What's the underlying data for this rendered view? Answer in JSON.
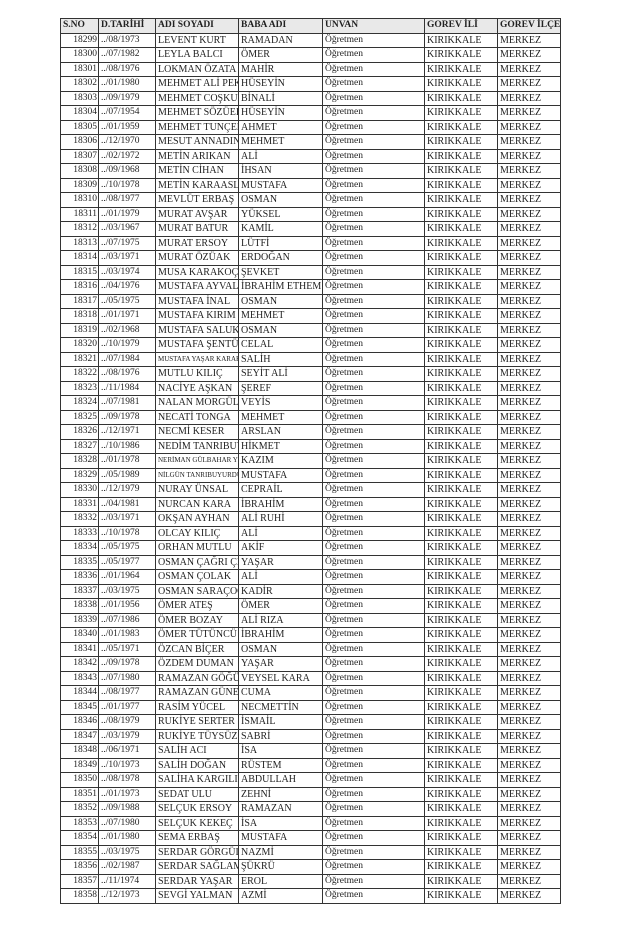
{
  "headers": [
    "S.NO",
    "D.TARİHİ",
    "ADI SOYADI",
    "BABA ADI",
    "UNVAN",
    "GOREV İLİ",
    "GOREV İLÇE"
  ],
  "rows": [
    [
      "18299",
      "../08/1973",
      "LEVENT KURT",
      "RAMADAN",
      "Öğretmen",
      "KIRIKKALE",
      "MERKEZ"
    ],
    [
      "18300",
      "../07/1982",
      "LEYLA BALCI",
      "ÖMER",
      "Öğretmen",
      "KIRIKKALE",
      "MERKEZ"
    ],
    [
      "18301",
      "../08/1976",
      "LOKMAN ÖZATA",
      "MAHİR",
      "Öğretmen",
      "KIRIKKALE",
      "MERKEZ"
    ],
    [
      "18302",
      "../01/1980",
      "MEHMET ALİ PEKER",
      "HÜSEYİN",
      "Öğretmen",
      "KIRIKKALE",
      "MERKEZ"
    ],
    [
      "18303",
      "../09/1979",
      "MEHMET COŞKUN",
      "BİNALİ",
      "Öğretmen",
      "KIRIKKALE",
      "MERKEZ"
    ],
    [
      "18304",
      "../07/1954",
      "MEHMET SÖZÜER",
      "HÜSEYİN",
      "Öğretmen",
      "KIRIKKALE",
      "MERKEZ"
    ],
    [
      "18305",
      "../01/1959",
      "MEHMET TUNÇER",
      "AHMET",
      "Öğretmen",
      "KIRIKKALE",
      "MERKEZ"
    ],
    [
      "18306",
      "../12/1970",
      "MESUT ANNADINÇ",
      "MEHMET",
      "Öğretmen",
      "KIRIKKALE",
      "MERKEZ"
    ],
    [
      "18307",
      "../02/1972",
      "METİN ARIKAN",
      "ALİ",
      "Öğretmen",
      "KIRIKKALE",
      "MERKEZ"
    ],
    [
      "18308",
      "../09/1968",
      "METİN CİHAN",
      "İHSAN",
      "Öğretmen",
      "KIRIKKALE",
      "MERKEZ"
    ],
    [
      "18309",
      "../10/1978",
      "METİN KARAASLAN",
      "MUSTAFA",
      "Öğretmen",
      "KIRIKKALE",
      "MERKEZ"
    ],
    [
      "18310",
      "../08/1977",
      "MEVLÜT ERBAŞ",
      "OSMAN",
      "Öğretmen",
      "KIRIKKALE",
      "MERKEZ"
    ],
    [
      "18311",
      "../01/1979",
      "MURAT AVŞAR",
      "YÜKSEL",
      "Öğretmen",
      "KIRIKKALE",
      "MERKEZ"
    ],
    [
      "18312",
      "../03/1967",
      "MURAT BATUR",
      "KAMİL",
      "Öğretmen",
      "KIRIKKALE",
      "MERKEZ"
    ],
    [
      "18313",
      "../07/1975",
      "MURAT ERSOY",
      "LÜTFİ",
      "Öğretmen",
      "KIRIKKALE",
      "MERKEZ"
    ],
    [
      "18314",
      "../03/1971",
      "MURAT ÖZÜAK",
      "ERDOĞAN",
      "Öğretmen",
      "KIRIKKALE",
      "MERKEZ"
    ],
    [
      "18315",
      "../03/1974",
      "MUSA KARAKOÇ",
      "ŞEVKET",
      "Öğretmen",
      "KIRIKKALE",
      "MERKEZ"
    ],
    [
      "18316",
      "../04/1976",
      "MUSTAFA AYVALIK",
      "İBRAHİM ETHEM",
      "Öğretmen",
      "KIRIKKALE",
      "MERKEZ"
    ],
    [
      "18317",
      "../05/1975",
      "MUSTAFA İNAL",
      "OSMAN",
      "Öğretmen",
      "KIRIKKALE",
      "MERKEZ"
    ],
    [
      "18318",
      "../01/1971",
      "MUSTAFA KIRIM",
      "MEHMET",
      "Öğretmen",
      "KIRIKKALE",
      "MERKEZ"
    ],
    [
      "18319",
      "../02/1968",
      "MUSTAFA SALUK",
      "OSMAN",
      "Öğretmen",
      "KIRIKKALE",
      "MERKEZ"
    ],
    [
      "18320",
      "../10/1979",
      "MUSTAFA ŞENTÜRK",
      "CELAL",
      "Öğretmen",
      "KIRIKKALE",
      "MERKEZ"
    ],
    [
      "18321",
      "../07/1984",
      "MUSTAFA YAŞAR KARAKÇI",
      "SALİH",
      "Öğretmen",
      "KIRIKKALE",
      "MERKEZ"
    ],
    [
      "18322",
      "../08/1976",
      "MUTLU KILIÇ",
      "SEYİT ALİ",
      "Öğretmen",
      "KIRIKKALE",
      "MERKEZ"
    ],
    [
      "18323",
      "../11/1984",
      "NACİYE AŞKAN",
      "ŞEREF",
      "Öğretmen",
      "KIRIKKALE",
      "MERKEZ"
    ],
    [
      "18324",
      "../07/1981",
      "NALAN MORGÜL",
      "VEYİS",
      "Öğretmen",
      "KIRIKKALE",
      "MERKEZ"
    ],
    [
      "18325",
      "../09/1978",
      "NECATİ TONGA",
      "MEHMET",
      "Öğretmen",
      "KIRIKKALE",
      "MERKEZ"
    ],
    [
      "18326",
      "../12/1971",
      "NECMİ KESER",
      "ARSLAN",
      "Öğretmen",
      "KIRIKKALE",
      "MERKEZ"
    ],
    [
      "18327",
      "../10/1986",
      "NEDİM TANRIBUYURDU",
      "HİKMET",
      "Öğretmen",
      "KIRIKKALE",
      "MERKEZ"
    ],
    [
      "18328",
      "../01/1978",
      "NERİMAN GÜLBAHAR YILDIRIM",
      "KAZIM",
      "Öğretmen",
      "KIRIKKALE",
      "MERKEZ"
    ],
    [
      "18329",
      "../05/1989",
      "NİLGÜN TANRIBUYURDU",
      "MUSTAFA",
      "Öğretmen",
      "KIRIKKALE",
      "MERKEZ"
    ],
    [
      "18330",
      "../12/1979",
      "NURAY ÜNSAL",
      "CEPRAİL",
      "Öğretmen",
      "KIRIKKALE",
      "MERKEZ"
    ],
    [
      "18331",
      "../04/1981",
      "NURCAN KARA",
      "İBRAHİM",
      "Öğretmen",
      "KIRIKKALE",
      "MERKEZ"
    ],
    [
      "18332",
      "../03/1971",
      "OKŞAN AYHAN",
      "ALİ RUHİ",
      "Öğretmen",
      "KIRIKKALE",
      "MERKEZ"
    ],
    [
      "18333",
      "../10/1978",
      "OLCAY KILIÇ",
      "ALİ",
      "Öğretmen",
      "KIRIKKALE",
      "MERKEZ"
    ],
    [
      "18334",
      "../05/1975",
      "ORHAN MUTLU",
      "AKİF",
      "Öğretmen",
      "KIRIKKALE",
      "MERKEZ"
    ],
    [
      "18335",
      "../05/1977",
      "OSMAN ÇAĞRI ÇEVİK",
      "YAŞAR",
      "Öğretmen",
      "KIRIKKALE",
      "MERKEZ"
    ],
    [
      "18336",
      "../01/1964",
      "OSMAN ÇOLAK",
      "ALİ",
      "Öğretmen",
      "KIRIKKALE",
      "MERKEZ"
    ],
    [
      "18337",
      "../03/1975",
      "OSMAN SARAÇOĞLU",
      "KADİR",
      "Öğretmen",
      "KIRIKKALE",
      "MERKEZ"
    ],
    [
      "18338",
      "../01/1956",
      "ÖMER ATEŞ",
      "ÖMER",
      "Öğretmen",
      "KIRIKKALE",
      "MERKEZ"
    ],
    [
      "18339",
      "../07/1986",
      "ÖMER BOZAY",
      "ALİ RIZA",
      "Öğretmen",
      "KIRIKKALE",
      "MERKEZ"
    ],
    [
      "18340",
      "../01/1983",
      "ÖMER TÜTÜNCÜ",
      "İBRAHİM",
      "Öğretmen",
      "KIRIKKALE",
      "MERKEZ"
    ],
    [
      "18341",
      "../05/1971",
      "ÖZCAN BİÇER",
      "OSMAN",
      "Öğretmen",
      "KIRIKKALE",
      "MERKEZ"
    ],
    [
      "18342",
      "../09/1978",
      "ÖZDEM DUMAN",
      "YAŞAR",
      "Öğretmen",
      "KIRIKKALE",
      "MERKEZ"
    ],
    [
      "18343",
      "../07/1980",
      "RAMAZAN GÖĞÜŞ",
      "VEYSEL KARA",
      "Öğretmen",
      "KIRIKKALE",
      "MERKEZ"
    ],
    [
      "18344",
      "../08/1977",
      "RAMAZAN GÜNERİ",
      "CUMA",
      "Öğretmen",
      "KIRIKKALE",
      "MERKEZ"
    ],
    [
      "18345",
      "../01/1977",
      "RASİM YÜCEL",
      "NECMETTİN",
      "Öğretmen",
      "KIRIKKALE",
      "MERKEZ"
    ],
    [
      "18346",
      "../08/1979",
      "RUKİYE SERTER",
      "İSMAİL",
      "Öğretmen",
      "KIRIKKALE",
      "MERKEZ"
    ],
    [
      "18347",
      "../03/1979",
      "RUKİYE TÜYSÜZ",
      "SABRİ",
      "Öğretmen",
      "KIRIKKALE",
      "MERKEZ"
    ],
    [
      "18348",
      "../06/1971",
      "SALİH ACI",
      "İSA",
      "Öğretmen",
      "KIRIKKALE",
      "MERKEZ"
    ],
    [
      "18349",
      "../10/1973",
      "SALİH DOĞAN",
      "RÜSTEM",
      "Öğretmen",
      "KIRIKKALE",
      "MERKEZ"
    ],
    [
      "18350",
      "../08/1978",
      "SALİHA KARGILI",
      "ABDULLAH",
      "Öğretmen",
      "KIRIKKALE",
      "MERKEZ"
    ],
    [
      "18351",
      "../01/1973",
      "SEDAT ULU",
      "ZEHNİ",
      "Öğretmen",
      "KIRIKKALE",
      "MERKEZ"
    ],
    [
      "18352",
      "../09/1988",
      "SELÇUK ERSOY",
      "RAMAZAN",
      "Öğretmen",
      "KIRIKKALE",
      "MERKEZ"
    ],
    [
      "18353",
      "../07/1980",
      "SELÇUK KEKEÇ",
      "İSA",
      "Öğretmen",
      "KIRIKKALE",
      "MERKEZ"
    ],
    [
      "18354",
      "../01/1980",
      "SEMA ERBAŞ",
      "MUSTAFA",
      "Öğretmen",
      "KIRIKKALE",
      "MERKEZ"
    ],
    [
      "18355",
      "../03/1975",
      "SERDAR GÖRGÜLÜ",
      "NAZMİ",
      "Öğretmen",
      "KIRIKKALE",
      "MERKEZ"
    ],
    [
      "18356",
      "../02/1987",
      "SERDAR SAĞLAM",
      "ŞÜKRÜ",
      "Öğretmen",
      "KIRIKKALE",
      "MERKEZ"
    ],
    [
      "18357",
      "../11/1974",
      "SERDAR YAŞAR",
      "EROL",
      "Öğretmen",
      "KIRIKKALE",
      "MERKEZ"
    ],
    [
      "18358",
      "../12/1973",
      "SEVGİ YALMAN",
      "AZMİ",
      "Öğretmen",
      "KIRIKKALE",
      "MERKEZ"
    ]
  ]
}
